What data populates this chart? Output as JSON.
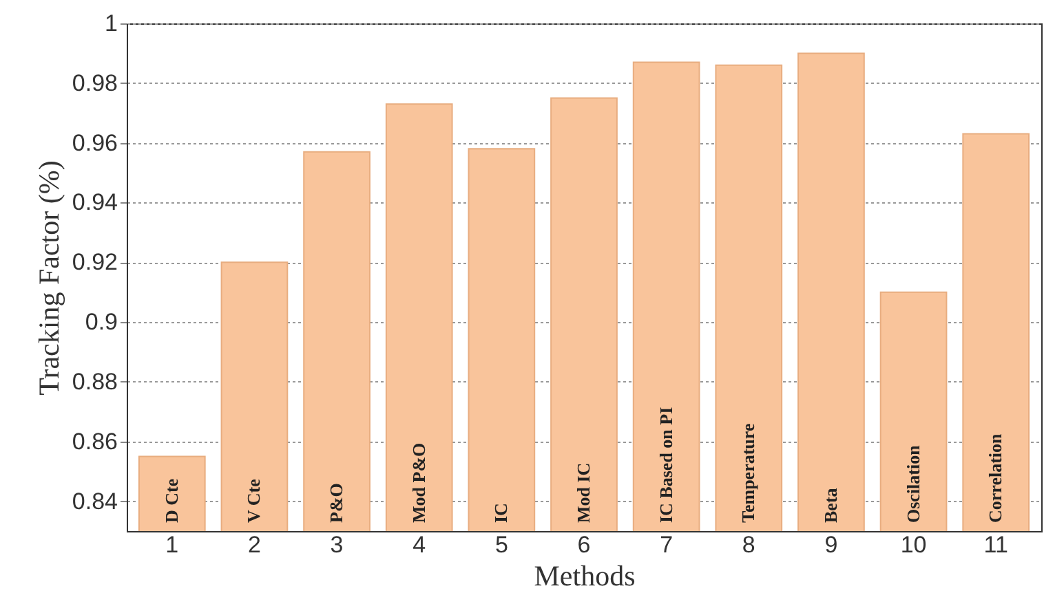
{
  "chart_data": {
    "type": "bar",
    "xlabel": "Methods",
    "ylabel": "Tracking Factor (%)",
    "categories": [
      "1",
      "2",
      "3",
      "4",
      "5",
      "6",
      "7",
      "8",
      "9",
      "10",
      "11"
    ],
    "values": [
      0.855,
      0.92,
      0.957,
      0.973,
      0.958,
      0.975,
      0.987,
      0.986,
      0.99,
      0.91,
      0.963
    ],
    "color": "#f9c49b",
    "ylim": [
      0.83,
      1
    ],
    "yticks": [
      0.84,
      0.86,
      0.88,
      0.9,
      0.92,
      0.94,
      0.96,
      0.98,
      1
    ],
    "grid": "y",
    "annotations": [
      "D Cte",
      "V Cte",
      "P&O",
      "Mod P&O",
      "IC",
      "Mod IC",
      "IC Based on PI",
      "Temperature",
      "Beta",
      "Oscilation",
      "Correlation"
    ]
  }
}
